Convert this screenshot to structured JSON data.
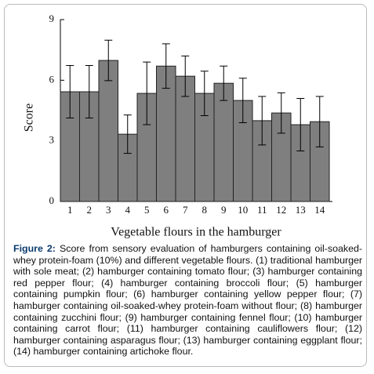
{
  "chart_data": {
    "type": "bar",
    "categories": [
      "1",
      "2",
      "3",
      "4",
      "5",
      "6",
      "7",
      "8",
      "9",
      "10",
      "11",
      "12",
      "13",
      "14"
    ],
    "values": [
      5.43,
      5.43,
      6.98,
      3.33,
      5.35,
      6.7,
      6.2,
      5.35,
      5.85,
      5.0,
      4.0,
      4.38,
      3.8,
      3.95
    ],
    "errors": [
      1.3,
      1.3,
      1.0,
      0.95,
      1.55,
      1.1,
      1.0,
      1.1,
      0.85,
      1.1,
      1.2,
      1.0,
      1.3,
      1.25
    ],
    "color": "#7f7f7f",
    "ylim": [
      0,
      9
    ],
    "yticks": [
      0,
      3,
      6,
      9
    ],
    "xlabel": "Vegetable flours in the hamburger",
    "ylabel": "Score"
  },
  "caption": {
    "label": "Figure 2:",
    "text": "Score from sensory evaluation of hamburgers containing oil-soaked-whey protein-foam (10%) and different vegetable flours. (1) traditional hamburger with sole meat; (2) hamburger containing tomato flour; (3) hamburger containing red pepper flour; (4) hamburger containing broccoli flour; (5) hamburger containing pumpkin flour; (6) hamburger containing yellow pepper flour; (7) hamburger containing oil-soaked-whey protein-foam without flour; (8) hamburger containing zucchini flour; (9) hamburger containing fennel flour; (10) hamburger containing carrot flour; (11) hamburger containing cauliflowers flour; (12) hamburger containing asparagus flour; (13) hamburger containing eggplant flour; (14) hamburger containing artichoke flour."
  }
}
